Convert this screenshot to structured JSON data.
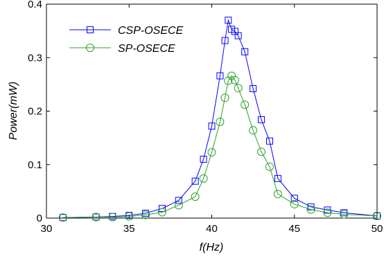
{
  "chart_data": {
    "type": "line",
    "xlabel": "f(Hz)",
    "ylabel": "Power(mW)",
    "xlim": [
      30,
      50
    ],
    "ylim": [
      0,
      0.4
    ],
    "xticks": [
      "30",
      "35",
      "40",
      "45",
      "50"
    ],
    "yticks": [
      "0",
      "0.1",
      "0.2",
      "0.3",
      "0.4"
    ],
    "legend_position": "top-left",
    "grid": false,
    "series": [
      {
        "name": "CSP-OSECE",
        "color": "#0000ff",
        "marker": "square",
        "x": [
          31,
          33,
          34,
          35,
          36,
          37,
          38,
          39,
          39.5,
          40,
          40.5,
          40.8,
          41,
          41.2,
          41.4,
          41.6,
          42,
          42.5,
          43,
          43.5,
          44,
          45,
          46,
          47,
          48,
          50
        ],
        "y": [
          0.001,
          0.002,
          0.003,
          0.005,
          0.009,
          0.018,
          0.033,
          0.069,
          0.11,
          0.172,
          0.266,
          0.332,
          0.37,
          0.353,
          0.349,
          0.341,
          0.311,
          0.242,
          0.184,
          0.144,
          0.074,
          0.037,
          0.021,
          0.015,
          0.01,
          0.004
        ]
      },
      {
        "name": "SP-OSECE",
        "color": "#2ca02c",
        "marker": "circle",
        "x": [
          31,
          33,
          34,
          35,
          36,
          37,
          38,
          39,
          39.5,
          40,
          40.5,
          40.8,
          41,
          41.2,
          41.4,
          41.6,
          42,
          42.5,
          43,
          43.5,
          44,
          45,
          46,
          47,
          48,
          50
        ],
        "y": [
          0.001,
          0.002,
          0.002,
          0.003,
          0.006,
          0.011,
          0.024,
          0.04,
          0.074,
          0.123,
          0.18,
          0.225,
          0.257,
          0.266,
          0.258,
          0.243,
          0.212,
          0.164,
          0.124,
          0.096,
          0.045,
          0.026,
          0.016,
          0.01,
          0.007,
          0.004
        ]
      }
    ]
  }
}
